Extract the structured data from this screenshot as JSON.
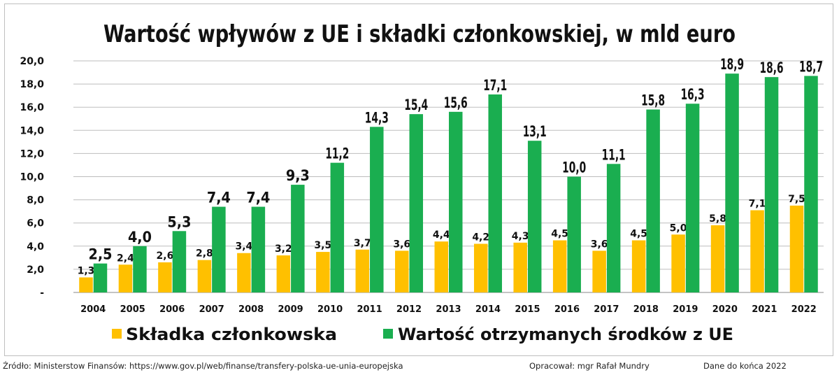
{
  "chart_data": {
    "type": "bar",
    "title": "Wartość wpływów z UE i składki członkowskiej, w mld euro",
    "categories": [
      "2004",
      "2005",
      "2006",
      "2007",
      "2008",
      "2009",
      "2010",
      "2011",
      "2012",
      "2013",
      "2014",
      "2015",
      "2016",
      "2017",
      "2018",
      "2019",
      "2020",
      "2021",
      "2022"
    ],
    "series": [
      {
        "name": "Składka członkowska",
        "color": "#ffc000",
        "values": [
          1.3,
          2.4,
          2.6,
          2.8,
          3.4,
          3.2,
          3.5,
          3.7,
          3.6,
          4.4,
          4.2,
          4.3,
          4.5,
          3.6,
          4.5,
          5.0,
          5.8,
          7.1,
          7.5
        ],
        "labels": [
          "1,3",
          "2,4",
          "2,6",
          "2,8",
          "3,4",
          "3,2",
          "3,5",
          "3,7",
          "3,6",
          "4,4",
          "4,2",
          "4,3",
          "4,5",
          "3,6",
          "4,5",
          "5,0",
          "5,8",
          "7,1",
          "7,5"
        ]
      },
      {
        "name": "Wartość otrzymanych środków z UE",
        "color": "#1aae50",
        "values": [
          2.5,
          4.0,
          5.3,
          7.4,
          7.4,
          9.3,
          11.2,
          14.3,
          15.4,
          15.6,
          17.1,
          13.1,
          10.0,
          11.1,
          15.8,
          16.3,
          18.9,
          18.6,
          18.7
        ],
        "labels": [
          "2,5",
          "4,0",
          "5,3",
          "7,4",
          "7,4",
          "9,3",
          "11,2",
          "14,3",
          "15,4",
          "15,6",
          "17,1",
          "13,1",
          "10,0",
          "11,1",
          "15,8",
          "16,3",
          "18,9",
          "18,6",
          "18,7"
        ]
      }
    ],
    "ylim": [
      0,
      20
    ],
    "yticks": [
      0,
      2,
      4,
      6,
      8,
      10,
      12,
      14,
      16,
      18,
      20
    ],
    "ytick_labels": [
      "-",
      "2,0",
      "4,0",
      "6,0",
      "8,0",
      "10,0",
      "12,0",
      "14,0",
      "16,0",
      "18,0",
      "20,0"
    ],
    "grid": true,
    "legend_position": "bottom"
  },
  "footer": {
    "source": "Źródło: Ministerstow Finansów: https://www.gov.pl/web/finanse/transfery-polska-ue-unia-europejska",
    "author": "Opracował: mgr Rafał Mundry",
    "date_note": "Dane do końca 2022"
  }
}
